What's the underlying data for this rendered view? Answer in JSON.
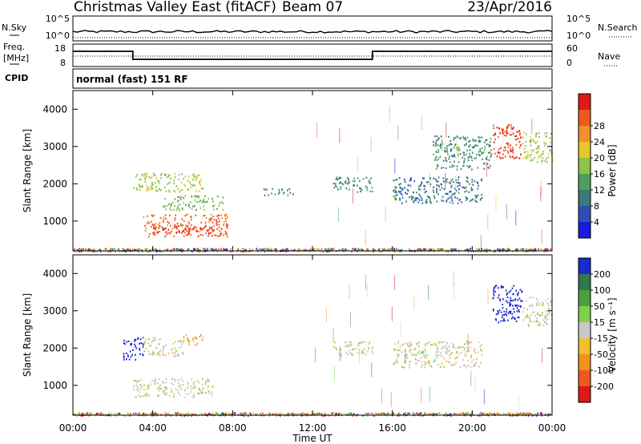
{
  "header": {
    "station": "Christmas Valley East (fitACF)",
    "beam": "Beam 07",
    "date": "23/Apr/2016"
  },
  "nsky_panel": {
    "left_label": "N.Sky",
    "right_label": "N.Search",
    "left_ticks": [
      "10^5",
      "10^0"
    ],
    "right_ticks": [
      "10^5",
      "10^0"
    ]
  },
  "freq_panel": {
    "left_label_1": "Freq.",
    "left_label_2": "[MHz]",
    "right_label": "Nave",
    "left_ticks": [
      "18",
      "8"
    ],
    "right_ticks": [
      "60",
      "0"
    ],
    "freq_steps": [
      {
        "t": 0.0,
        "mhz": 15.5
      },
      {
        "t": 3.0,
        "mhz": 10.5
      },
      {
        "t": 15.0,
        "mhz": 15.5
      },
      {
        "t": 24.0,
        "mhz": 15.5
      }
    ]
  },
  "cpid_panel": {
    "label": "CPID",
    "mode_text": "normal (fast) 151 RF"
  },
  "power_panel": {
    "ylabel": "Slant Range [km]",
    "yticks": [
      "1000",
      "2000",
      "3000",
      "4000"
    ],
    "colorbar_label": "Power [dB]",
    "colorbar_ticks": [
      "4",
      "8",
      "12",
      "16",
      "20",
      "24",
      "28"
    ],
    "colorbar_colors": [
      "#1a1adc",
      "#2f4fb8",
      "#3a7a7a",
      "#4e9e5e",
      "#8cc448",
      "#e8c828",
      "#f09028",
      "#ec5a20",
      "#e01818"
    ]
  },
  "velocity_panel": {
    "ylabel": "Slant Range [km]",
    "yticks": [
      "1000",
      "2000",
      "3000",
      "4000"
    ],
    "colorbar_label": "Velocity [m s⁻¹]",
    "colorbar_ticks": [
      "200",
      "100",
      "50",
      "15",
      "-15",
      "-50",
      "-100",
      "-200"
    ],
    "colorbar_colors": [
      "#1a2ad0",
      "#2e7a4a",
      "#4aa040",
      "#7ed04a",
      "#c8c8c8",
      "#f0c030",
      "#f0921e",
      "#ee5a1e",
      "#e01818"
    ]
  },
  "x_axis": {
    "label": "Time UT",
    "ticks": [
      "00:00",
      "04:00",
      "08:00",
      "12:00",
      "16:00",
      "20:00",
      "00:00"
    ]
  },
  "chart_data": {
    "type": "heatmap",
    "title": "Christmas Valley East (fitACF) Beam 07 23/Apr/2016",
    "xlabel": "Time UT",
    "ylabel": "Slant Range [km]",
    "xlim": [
      0,
      24
    ],
    "ylim": [
      200,
      4500
    ],
    "panels": [
      {
        "name": "Power",
        "unit": "dB",
        "range": [
          0,
          30
        ],
        "regions": [
          {
            "t0": 3.5,
            "t1": 7.8,
            "r0": 600,
            "r1": 1200,
            "value": 24
          },
          {
            "t0": 4.0,
            "t1": 7.0,
            "r0": 700,
            "r1": 900,
            "value": 28
          },
          {
            "t0": 3.0,
            "t1": 6.5,
            "r0": 1800,
            "r1": 2300,
            "value": 16
          },
          {
            "t0": 4.5,
            "t1": 7.5,
            "r0": 1300,
            "r1": 1700,
            "value": 14
          },
          {
            "t0": 9.5,
            "t1": 11.0,
            "r0": 1700,
            "r1": 1900,
            "value": 10
          },
          {
            "t0": 13.0,
            "t1": 15.0,
            "r0": 1800,
            "r1": 2200,
            "value": 10
          },
          {
            "t0": 16.0,
            "t1": 20.5,
            "r0": 1500,
            "r1": 2200,
            "value": 8
          },
          {
            "t0": 18.0,
            "t1": 21.0,
            "r0": 2400,
            "r1": 3300,
            "value": 10
          },
          {
            "t0": 21.0,
            "t1": 22.5,
            "r0": 2700,
            "r1": 3600,
            "value": 26
          },
          {
            "t0": 22.5,
            "t1": 24.0,
            "r0": 2600,
            "r1": 3400,
            "value": 16
          }
        ]
      },
      {
        "name": "Velocity",
        "unit": "m/s",
        "range": [
          -200,
          200
        ],
        "regions": [
          {
            "t0": 3.0,
            "t1": 7.0,
            "r0": 700,
            "r1": 1200,
            "value": 0
          },
          {
            "t0": 2.5,
            "t1": 3.5,
            "r0": 1700,
            "r1": 2300,
            "value": 200
          },
          {
            "t0": 3.5,
            "t1": 5.5,
            "r0": 1800,
            "r1": 2300,
            "value": 0
          },
          {
            "t0": 5.5,
            "t1": 6.5,
            "r0": 2100,
            "r1": 2400,
            "value": -60
          },
          {
            "t0": 13.0,
            "t1": 15.0,
            "r0": 1800,
            "r1": 2200,
            "value": 0
          },
          {
            "t0": 16.0,
            "t1": 20.5,
            "r0": 1500,
            "r1": 2200,
            "value": 0
          },
          {
            "t0": 21.0,
            "t1": 22.5,
            "r0": 2700,
            "r1": 3700,
            "value": 200
          },
          {
            "t0": 22.5,
            "t1": 24.0,
            "r0": 2600,
            "r1": 3400,
            "value": 0
          }
        ]
      }
    ]
  }
}
